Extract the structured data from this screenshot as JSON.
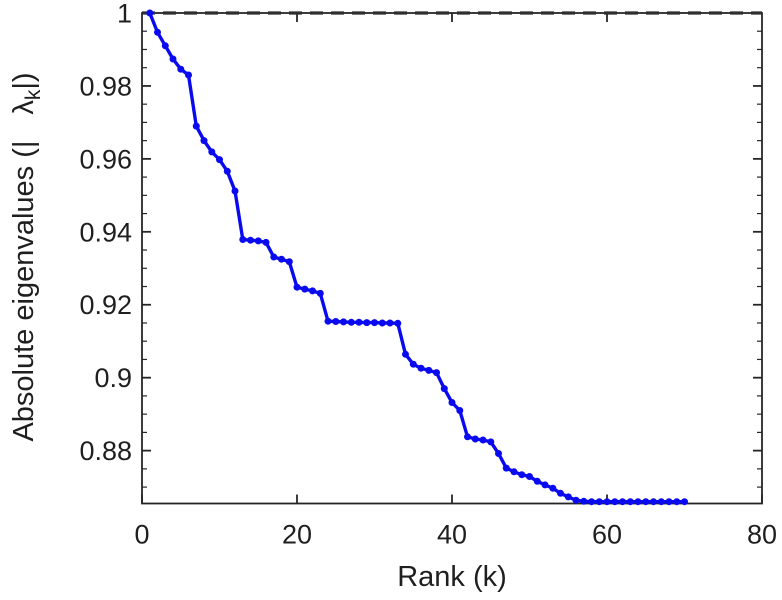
{
  "figure": {
    "background": "#ffffff"
  },
  "chart_data": {
    "type": "line",
    "title": "",
    "xlabel": "Rank (k)",
    "ylabel": "Absolute eigenvalues (| λ_k |)",
    "ylabel_parts": {
      "prefix": "Absolute eigenvalues (|",
      "lambda": "λ",
      "subscript": "k",
      "suffix": "|)"
    },
    "xlim": [
      0,
      80
    ],
    "ylim": [
      0.8655,
      1.0
    ],
    "grid": false,
    "legend": "none",
    "x_axis": {
      "tick_values": [
        0,
        20,
        40,
        60,
        80
      ],
      "tick_labels": [
        "0",
        "20",
        "40",
        "60",
        "80"
      ],
      "minor_tick_step": 0
    },
    "y_axis": {
      "tick_values": [
        0.88,
        0.9,
        0.92,
        0.94,
        0.96,
        0.98,
        1.0
      ],
      "tick_labels": [
        "0.88",
        "0.9",
        "0.92",
        "0.94",
        "0.96",
        "0.98",
        "1"
      ],
      "minor_tick_step": 0.005
    },
    "reference_line": {
      "y": 1.0,
      "style": "dashed",
      "color": "#2e2e2e"
    },
    "axis_color": "#262626",
    "text_color": "#1f1f1f",
    "series": [
      {
        "name": "absolute-eigenvalues",
        "color": "#0a0af0",
        "marker": "circle",
        "x": [
          1,
          2,
          3,
          4,
          5,
          6,
          7,
          8,
          9,
          10,
          11,
          12,
          13,
          14,
          15,
          16,
          17,
          18,
          19,
          20,
          21,
          22,
          23,
          24,
          25,
          26,
          27,
          28,
          29,
          30,
          31,
          32,
          33,
          34,
          35,
          36,
          37,
          38,
          39,
          40,
          41,
          42,
          43,
          44,
          45,
          46,
          47,
          48,
          49,
          50,
          51,
          52,
          53,
          54,
          55,
          56,
          57,
          58,
          59,
          60,
          61,
          62,
          63,
          64,
          65,
          66,
          67,
          68,
          69,
          70
        ],
        "y": [
          1.0,
          0.9947,
          0.991,
          0.9874,
          0.9846,
          0.983,
          0.969,
          0.965,
          0.9619,
          0.9598,
          0.9566,
          0.9512,
          0.9379,
          0.9377,
          0.9375,
          0.9371,
          0.9331,
          0.9325,
          0.9318,
          0.9248,
          0.9243,
          0.9238,
          0.9231,
          0.9155,
          0.9154,
          0.9153,
          0.9152,
          0.9152,
          0.9151,
          0.9151,
          0.915,
          0.915,
          0.9149,
          0.9064,
          0.9037,
          0.9026,
          0.902,
          0.9014,
          0.897,
          0.8932,
          0.891,
          0.8838,
          0.8832,
          0.8829,
          0.8824,
          0.8792,
          0.8752,
          0.8742,
          0.8734,
          0.8729,
          0.8716,
          0.8706,
          0.8697,
          0.8683,
          0.8673,
          0.8664,
          0.8661,
          0.866,
          0.866,
          0.866,
          0.866,
          0.866,
          0.866,
          0.866,
          0.866,
          0.866,
          0.866,
          0.866,
          0.866,
          0.866
        ]
      }
    ]
  }
}
